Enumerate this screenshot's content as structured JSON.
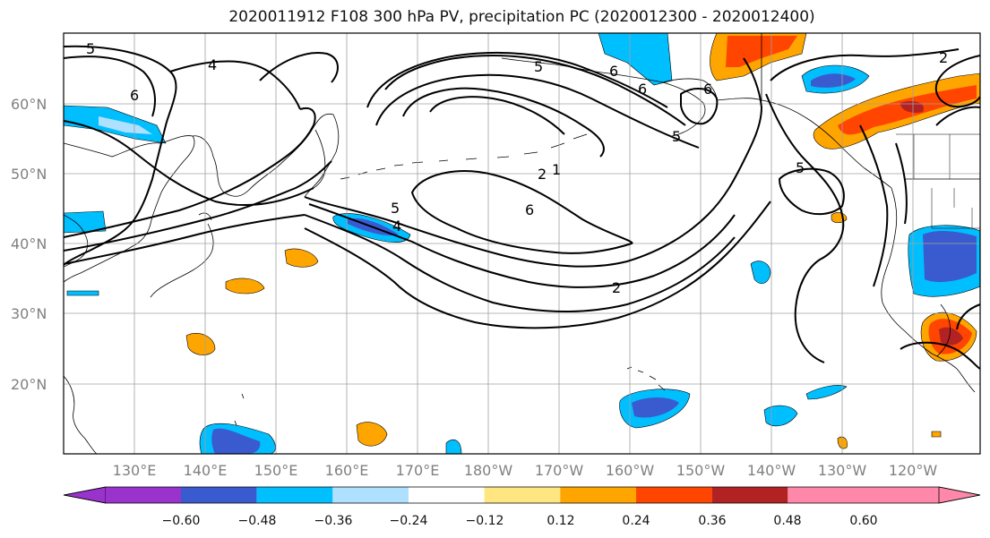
{
  "title": "2020011912 F108 300 hPa PV, precipitation PC (2020012300 - 2020012400)",
  "lat_labels": [
    "60°N",
    "50°N",
    "40°N",
    "30°N",
    "20°N"
  ],
  "lon_labels": [
    "130°E",
    "140°E",
    "150°E",
    "160°E",
    "170°E",
    "180°W",
    "170°W",
    "160°W",
    "150°W",
    "140°W",
    "130°W",
    "120°W"
  ],
  "contour_labels": [
    "5",
    "4",
    "6",
    "5",
    "6",
    "6",
    "5",
    "2",
    "1",
    "6",
    "2",
    "5",
    "4",
    "5",
    "6",
    "2"
  ],
  "colorbar": {
    "ticks": [
      "−0.60",
      "−0.48",
      "−0.36",
      "−0.24",
      "−0.12",
      "0.12",
      "0.24",
      "0.36",
      "0.48",
      "0.60"
    ],
    "colors": [
      "#9933cc",
      "#000080",
      "#3a5bd0",
      "#00bfff",
      "#b0e0ff",
      "#ffffff",
      "#ffe680",
      "#ffa500",
      "#ff4500",
      "#b22222",
      "#ff88aa"
    ]
  },
  "colors": {
    "land_line": "#000000",
    "grid": "#a0a0a0",
    "pv_contour": "#000000"
  }
}
